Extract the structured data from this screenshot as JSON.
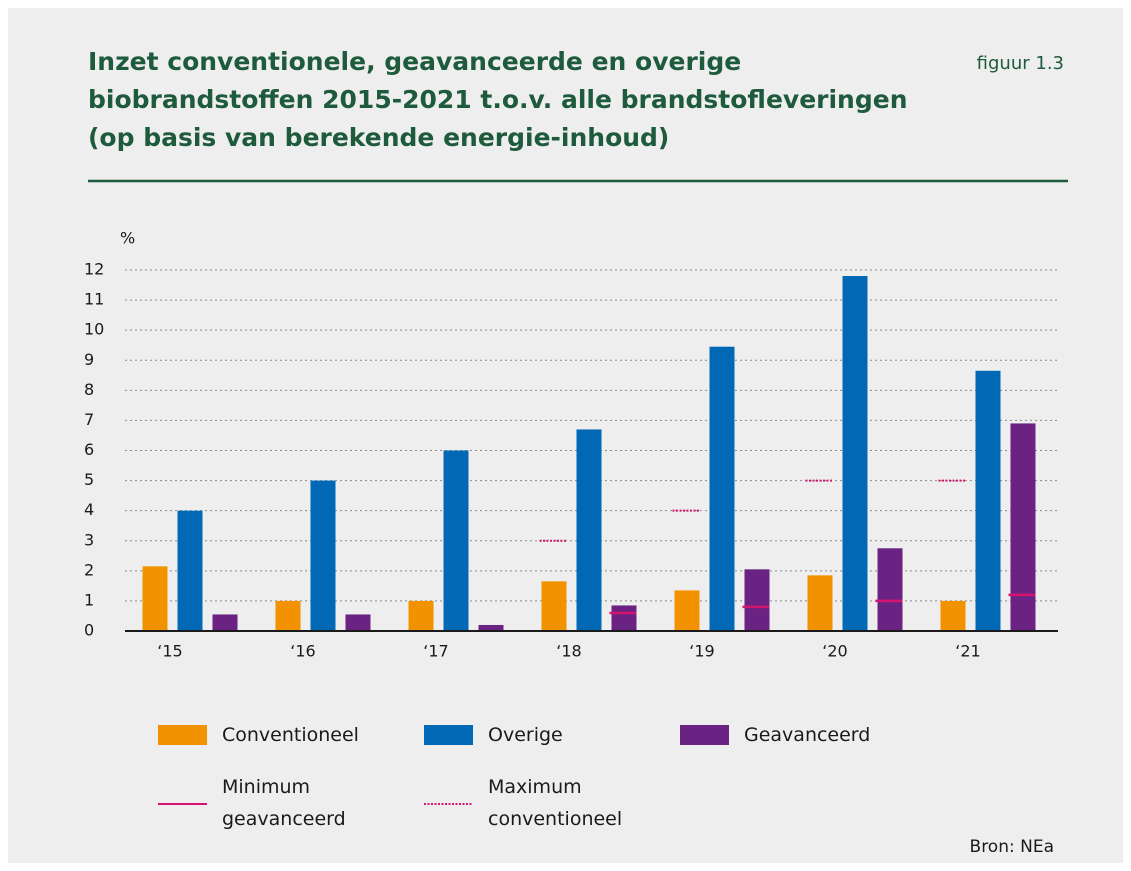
{
  "chart_data": {
    "type": "bar",
    "title": [
      "Inzet conventionele, geavanceerde en overige",
      "biobrandstoffen 2015-2021 t.o.v. alle brandstofleveringen",
      "(op basis van berekende energie-inhoud)"
    ],
    "figure_label": "figuur 1.3",
    "y_unit": "%",
    "source": "Bron: NEa",
    "categories": [
      "‘15",
      "‘16",
      "‘17",
      "‘18",
      "‘19",
      "‘20",
      "‘21"
    ],
    "series": [
      {
        "name": "Conventioneel",
        "color": "#f39200",
        "values": [
          2.15,
          1.0,
          1.0,
          1.65,
          1.35,
          1.85,
          1.0
        ]
      },
      {
        "name": "Overige",
        "color": "#0068b4",
        "values": [
          4.0,
          5.0,
          6.0,
          6.7,
          9.45,
          11.8,
          8.65
        ]
      },
      {
        "name": "Geavanceerd",
        "color": "#6a2383",
        "values": [
          0.55,
          0.55,
          0.2,
          0.85,
          2.05,
          2.75,
          6.9
        ]
      },
      {
        "name": "Minimum geavanceerd",
        "color": "#d4146e",
        "line_style": "solid",
        "values": [
          null,
          null,
          null,
          0.6,
          0.8,
          1.0,
          1.2
        ]
      },
      {
        "name": "Maximum conventioneel",
        "color": "#d4146e",
        "line_style": "dotted",
        "values": [
          null,
          null,
          null,
          3,
          4,
          5,
          5
        ]
      }
    ],
    "ylim": [
      0,
      12
    ],
    "yticks": [
      0,
      1,
      2,
      3,
      4,
      5,
      6,
      7,
      8,
      9,
      10,
      11,
      12
    ],
    "grid": true
  }
}
